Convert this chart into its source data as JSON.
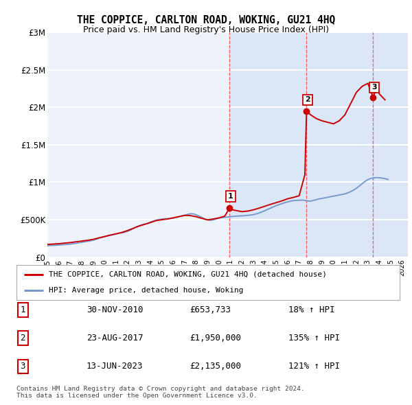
{
  "title": "THE COPPICE, CARLTON ROAD, WOKING, GU21 4HQ",
  "subtitle": "Price paid vs. HM Land Registry's House Price Index (HPI)",
  "ylabel_ticks": [
    "£0",
    "£500K",
    "£1M",
    "£1.5M",
    "£2M",
    "£2.5M",
    "£3M"
  ],
  "ytick_values": [
    0,
    500000,
    1000000,
    1500000,
    2000000,
    2500000,
    3000000
  ],
  "ylim": [
    0,
    3000000
  ],
  "xlim_start": 1995.0,
  "xlim_end": 2026.5,
  "plot_background_color": "#eef2fb",
  "grid_color": "#ffffff",
  "red_line_color": "#cc0000",
  "blue_line_color": "#7799cc",
  "transaction_dates": [
    2010.917,
    2017.644,
    2023.461
  ],
  "transaction_prices": [
    653733,
    1950000,
    2135000
  ],
  "transaction_labels": [
    "1",
    "2",
    "3"
  ],
  "legend_label_red": "THE COPPICE, CARLTON ROAD, WOKING, GU21 4HQ (detached house)",
  "legend_label_blue": "HPI: Average price, detached house, Woking",
  "table_rows": [
    [
      "1",
      "30-NOV-2010",
      "£653,733",
      "18% ↑ HPI"
    ],
    [
      "2",
      "23-AUG-2017",
      "£1,950,000",
      "135% ↑ HPI"
    ],
    [
      "3",
      "13-JUN-2023",
      "£2,135,000",
      "121% ↑ HPI"
    ]
  ],
  "footer_text": "Contains HM Land Registry data © Crown copyright and database right 2024.\nThis data is licensed under the Open Government Licence v3.0.",
  "hpi_years": [
    1995.0,
    1995.25,
    1995.5,
    1995.75,
    1996.0,
    1996.25,
    1996.5,
    1996.75,
    1997.0,
    1997.25,
    1997.5,
    1997.75,
    1998.0,
    1998.25,
    1998.5,
    1998.75,
    1999.0,
    1999.25,
    1999.5,
    1999.75,
    2000.0,
    2000.25,
    2000.5,
    2000.75,
    2001.0,
    2001.25,
    2001.5,
    2001.75,
    2002.0,
    2002.25,
    2002.5,
    2002.75,
    2003.0,
    2003.25,
    2003.5,
    2003.75,
    2004.0,
    2004.25,
    2004.5,
    2004.75,
    2005.0,
    2005.25,
    2005.5,
    2005.75,
    2006.0,
    2006.25,
    2006.5,
    2006.75,
    2007.0,
    2007.25,
    2007.5,
    2007.75,
    2008.0,
    2008.25,
    2008.5,
    2008.75,
    2009.0,
    2009.25,
    2009.5,
    2009.75,
    2010.0,
    2010.25,
    2010.5,
    2010.75,
    2011.0,
    2011.25,
    2011.5,
    2011.75,
    2012.0,
    2012.25,
    2012.5,
    2012.75,
    2013.0,
    2013.25,
    2013.5,
    2013.75,
    2014.0,
    2014.25,
    2014.5,
    2014.75,
    2015.0,
    2015.25,
    2015.5,
    2015.75,
    2016.0,
    2016.25,
    2016.5,
    2016.75,
    2017.0,
    2017.25,
    2017.5,
    2017.75,
    2018.0,
    2018.25,
    2018.5,
    2018.75,
    2019.0,
    2019.25,
    2019.5,
    2019.75,
    2020.0,
    2020.25,
    2020.5,
    2020.75,
    2021.0,
    2021.25,
    2021.5,
    2021.75,
    2022.0,
    2022.25,
    2022.5,
    2022.75,
    2023.0,
    2023.25,
    2023.5,
    2023.75,
    2024.0,
    2024.25,
    2024.5,
    2024.75
  ],
  "hpi_values": [
    155000,
    157000,
    158000,
    160000,
    162000,
    165000,
    168000,
    170000,
    175000,
    180000,
    186000,
    192000,
    198000,
    205000,
    212000,
    218000,
    226000,
    238000,
    252000,
    264000,
    275000,
    285000,
    293000,
    300000,
    308000,
    318000,
    326000,
    333000,
    345000,
    362000,
    382000,
    402000,
    418000,
    432000,
    442000,
    450000,
    468000,
    482000,
    495000,
    502000,
    508000,
    512000,
    514000,
    516000,
    522000,
    530000,
    540000,
    550000,
    560000,
    572000,
    580000,
    578000,
    565000,
    548000,
    530000,
    510000,
    498000,
    492000,
    498000,
    510000,
    520000,
    528000,
    532000,
    535000,
    540000,
    545000,
    548000,
    550000,
    552000,
    555000,
    558000,
    562000,
    568000,
    578000,
    590000,
    605000,
    620000,
    638000,
    655000,
    672000,
    688000,
    702000,
    715000,
    728000,
    738000,
    748000,
    755000,
    758000,
    760000,
    762000,
    758000,
    750000,
    748000,
    758000,
    768000,
    778000,
    785000,
    792000,
    800000,
    808000,
    815000,
    822000,
    830000,
    838000,
    845000,
    858000,
    875000,
    895000,
    920000,
    950000,
    980000,
    1010000,
    1035000,
    1050000,
    1058000,
    1062000,
    1060000,
    1055000,
    1048000,
    1038000
  ],
  "prop_years": [
    1995.0,
    1995.5,
    1996.0,
    1996.5,
    1997.0,
    1997.5,
    1998.0,
    1998.5,
    1999.0,
    1999.5,
    2000.0,
    2000.5,
    2001.0,
    2001.5,
    2002.0,
    2002.5,
    2003.0,
    2003.5,
    2004.0,
    2004.5,
    2005.0,
    2005.5,
    2006.0,
    2006.5,
    2007.0,
    2007.5,
    2008.0,
    2008.5,
    2009.0,
    2009.5,
    2010.0,
    2010.5,
    2010.917,
    2011.0,
    2011.5,
    2012.0,
    2012.5,
    2013.0,
    2013.5,
    2014.0,
    2014.5,
    2015.0,
    2015.5,
    2016.0,
    2016.5,
    2017.0,
    2017.5,
    2017.644,
    2018.0,
    2018.5,
    2019.0,
    2019.5,
    2020.0,
    2020.5,
    2021.0,
    2021.5,
    2022.0,
    2022.5,
    2023.0,
    2023.461,
    2023.75,
    2024.0,
    2024.5
  ],
  "prop_values": [
    170000,
    175000,
    180000,
    188000,
    195000,
    205000,
    215000,
    225000,
    238000,
    258000,
    275000,
    295000,
    312000,
    330000,
    355000,
    385000,
    415000,
    438000,
    462000,
    488000,
    500000,
    510000,
    525000,
    542000,
    558000,
    555000,
    540000,
    518000,
    498000,
    510000,
    525000,
    548000,
    653733,
    638000,
    622000,
    608000,
    615000,
    632000,
    655000,
    680000,
    705000,
    728000,
    752000,
    780000,
    798000,
    820000,
    1100000,
    1950000,
    1900000,
    1850000,
    1820000,
    1800000,
    1780000,
    1820000,
    1900000,
    2050000,
    2200000,
    2280000,
    2320000,
    2135000,
    2250000,
    2180000,
    2100000
  ]
}
